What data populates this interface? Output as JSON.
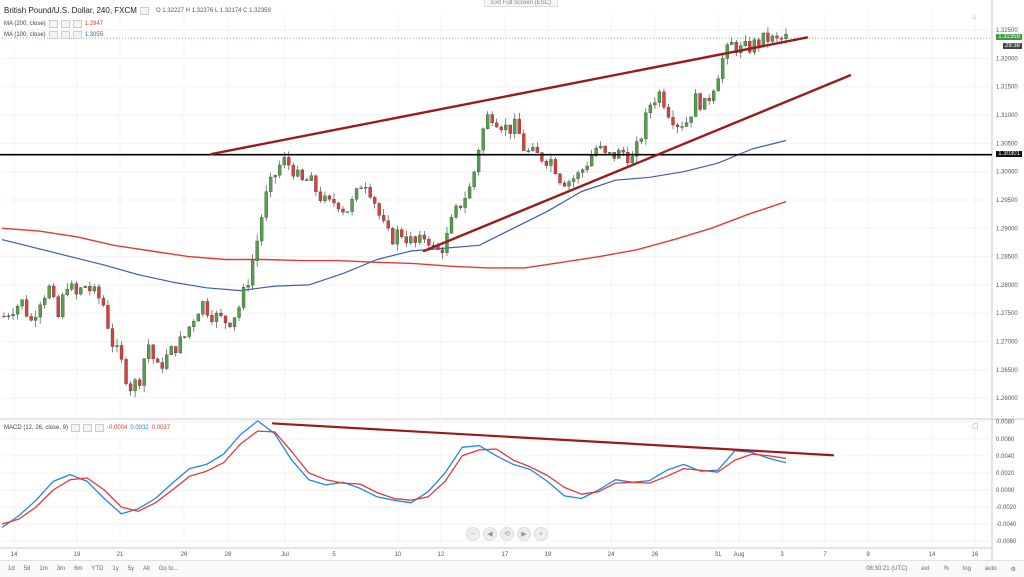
{
  "header": {
    "symbol": "British Pound/U.S. Dollar, 240, FXCM",
    "ohlc": "O 1.32227  H 1.32376  L 1.32174  C 1.32359",
    "exit_fullscreen": "Exit Full Screen (ESC)"
  },
  "legend": {
    "ma200_label": "MA (200, close)",
    "ma200_value": "1.2947",
    "ma100_label": "MA (100, close)",
    "ma100_value": "1.3055",
    "macd_label": "MACD (12, 26, close, 9)",
    "macd_hist": "-0.0004",
    "macd_line": "0.0032",
    "macd_signal": "0.0037"
  },
  "price_tags": {
    "last_price": "1.32359",
    "countdown": "29:38",
    "horizontal_level": "1.30301"
  },
  "navigation": {
    "buttons": [
      "−",
      "◀",
      "⟲",
      "▶",
      "+"
    ]
  },
  "bottom_bar": {
    "timeframes": [
      "1d",
      "5d",
      "1m",
      "3m",
      "6m",
      "YTD",
      "1y",
      "5y",
      "All",
      "Go to..."
    ],
    "time": "08:30:21 (UTC)",
    "options": [
      "ext",
      "%",
      "log",
      "auto"
    ]
  },
  "colors": {
    "up_candle": "#53a04a",
    "down_candle": "#d84040",
    "ma200": "#e53935",
    "ma100": "#3b5fb0",
    "trendline": "#9b1b1b",
    "macd_line": "#1e88e5",
    "signal_line": "#e53935"
  },
  "chart_data": [
    {
      "type": "candlestick",
      "title": "British Pound/U.S. Dollar, 240, FXCM",
      "x_tick_labels": [
        "14",
        "19",
        "21",
        "26",
        "28",
        "Jul",
        "5",
        "10",
        "12",
        "17",
        "19",
        "24",
        "26",
        "31",
        "Aug",
        "3",
        "7",
        "9",
        "14",
        "16"
      ],
      "y_tick_labels": [
        "1.32500",
        "1.32000",
        "1.31500",
        "1.31000",
        "1.30500",
        "1.30000",
        "1.29500",
        "1.29000",
        "1.28500",
        "1.28000",
        "1.27500",
        "1.27000",
        "1.26500",
        "1.26000"
      ],
      "ylim": [
        1.2565,
        1.3282
      ],
      "close_path": [
        1.2745,
        1.276,
        1.277,
        1.2735,
        1.2775,
        1.2795,
        1.274,
        1.2805,
        1.278,
        1.28,
        1.2785,
        1.277,
        1.27,
        1.2665,
        1.262,
        1.263,
        1.27,
        1.265,
        1.267,
        1.269,
        1.2705,
        1.274,
        1.277,
        1.275,
        1.274,
        1.2735,
        1.2755,
        1.28,
        1.2865,
        1.295,
        1.299,
        1.302,
        1.301,
        1.298,
        1.2985,
        1.296,
        1.294,
        1.295,
        1.293,
        1.295,
        1.299,
        1.296,
        1.291,
        1.288,
        1.2895,
        1.288,
        1.287,
        1.289,
        1.2855,
        1.287,
        1.292,
        1.295,
        1.2975,
        1.306,
        1.3105,
        1.309,
        1.3075,
        1.308,
        1.3035,
        1.303,
        1.3025,
        1.302,
        1.2985,
        1.2985,
        1.2995,
        1.302,
        1.3045,
        1.3025,
        1.303,
        1.3035,
        1.302,
        1.307,
        1.3125,
        1.314,
        1.3105,
        1.3085,
        1.309,
        1.313,
        1.3115,
        1.3155,
        1.32,
        1.3225,
        1.3215,
        1.322,
        1.323,
        1.3235,
        1.323,
        1.3236
      ],
      "horizontal_level": 1.30301,
      "ma200_path": [
        1.29,
        1.2895,
        1.2885,
        1.287,
        1.286,
        1.285,
        1.2845,
        1.2845,
        1.2843,
        1.2843,
        1.284,
        1.2838,
        1.2833,
        1.283,
        1.283,
        1.284,
        1.285,
        1.2862,
        1.288,
        1.29,
        1.2925,
        1.2947
      ],
      "ma100_path": [
        1.288,
        1.2865,
        1.285,
        1.2835,
        1.2818,
        1.2805,
        1.2795,
        1.279,
        1.2798,
        1.28,
        1.282,
        1.2845,
        1.286,
        1.2865,
        1.287,
        1.29,
        1.293,
        1.2965,
        1.2985,
        1.299,
        1.3,
        1.3015,
        1.304,
        1.3055
      ],
      "trendlines": [
        {
          "name": "upper-resistance",
          "from": [
            "28",
            1.3031
          ],
          "to": [
            "3",
            1.3237
          ]
        },
        {
          "name": "lower-support",
          "from": [
            "12",
            1.286
          ],
          "to": [
            "7",
            1.317
          ]
        }
      ],
      "legend": [
        "MA (200, close) 1.2947",
        "MA (100, close) 1.3055"
      ]
    },
    {
      "type": "line",
      "title": "MACD (12, 26, close, 9)",
      "y_tick_labels": [
        "0.0080",
        "0.0060",
        "0.0040",
        "0.0020",
        "0.0000",
        "-0.0020",
        "-0.0040",
        "-0.0060"
      ],
      "ylim": [
        -0.0068,
        0.0082
      ],
      "series": [
        {
          "name": "MACD",
          "values": [
            -0.0044,
            -0.003,
            -0.0012,
            0.001,
            0.0018,
            0.001,
            -0.001,
            -0.0028,
            -0.0022,
            -0.001,
            0.0008,
            0.0025,
            0.003,
            0.0042,
            0.0065,
            0.0081,
            0.0066,
            0.0035,
            0.0012,
            0.0006,
            0.0009,
            0.0002,
            -0.0008,
            -0.0012,
            -0.0015,
            -0.0002,
            0.002,
            0.005,
            0.0052,
            0.004,
            0.003,
            0.0024,
            0.001,
            -0.0007,
            -0.001,
            0.0,
            0.0012,
            0.0009,
            0.0011,
            0.0023,
            0.003,
            0.0022,
            0.0023,
            0.0046,
            0.0044,
            0.0037,
            0.0032
          ]
        },
        {
          "name": "Signal",
          "values": [
            -0.004,
            -0.0034,
            -0.002,
            0.0,
            0.0012,
            0.0014,
            0.0,
            -0.002,
            -0.0025,
            -0.0015,
            0.0,
            0.0016,
            0.0022,
            0.0032,
            0.0054,
            0.0069,
            0.0068,
            0.0045,
            0.002,
            0.0012,
            0.0008,
            0.0007,
            -0.0003,
            -0.001,
            -0.0012,
            -0.0008,
            0.001,
            0.004,
            0.0047,
            0.0048,
            0.0035,
            0.0027,
            0.0017,
            0.0003,
            -0.0005,
            -0.0002,
            0.0008,
            0.0009,
            0.0008,
            0.0016,
            0.0025,
            0.0023,
            0.0021,
            0.0035,
            0.0042,
            0.004,
            0.0037
          ]
        }
      ],
      "trendlines": [
        {
          "name": "macd-divergence",
          "from": [
            "28",
            0.0078
          ],
          "to": [
            "7",
            0.0029
          ]
        }
      ]
    }
  ]
}
